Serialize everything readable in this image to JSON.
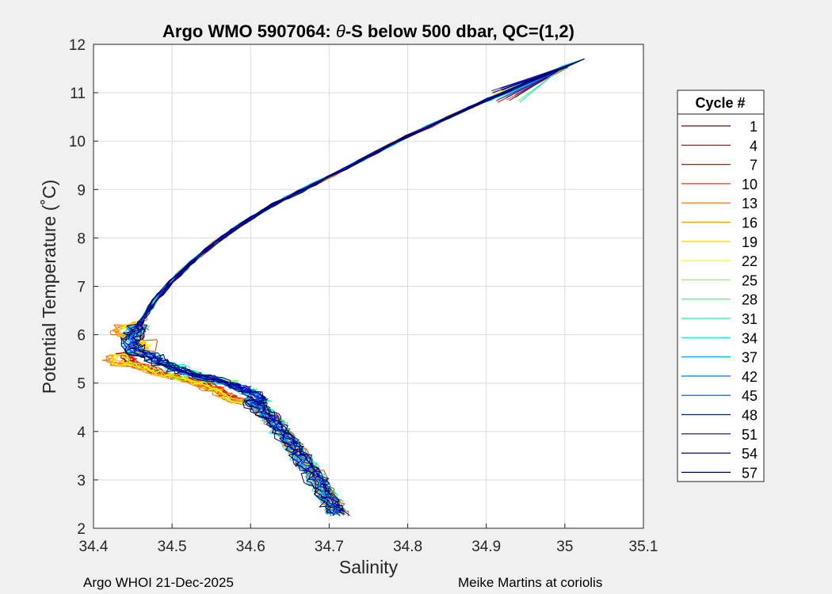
{
  "chart_data": {
    "type": "line",
    "title_prefix": "Argo WMO 5907064: ",
    "title_theta": "θ",
    "title_suffix": "-S below 500 dbar,  QC=(1,2)",
    "xlabel": "Salinity",
    "ylabel": "Potential Temperature (˚C)",
    "xlim": [
      34.4,
      35.1
    ],
    "ylim": [
      2,
      12
    ],
    "xticks": [
      "34.4",
      "34.5",
      "34.6",
      "34.7",
      "34.8",
      "34.9",
      "35",
      "35.1"
    ],
    "yticks": [
      "2",
      "3",
      "4",
      "5",
      "6",
      "7",
      "8",
      "9",
      "10",
      "11",
      "12"
    ],
    "grid": true,
    "legend_title": "Cycle #",
    "legend_position": "outside-right",
    "legend_entries": [
      "1",
      "4",
      "7",
      "10",
      "13",
      "16",
      "19",
      "22",
      "25",
      "28",
      "31",
      "34",
      "37",
      "42",
      "45",
      "48",
      "51",
      "54",
      "57"
    ],
    "legend_colors": [
      "#800000",
      "#b00000",
      "#e00000",
      "#ff3300",
      "#ff6600",
      "#ff9900",
      "#ffcc00",
      "#ffff00",
      "#99ff33",
      "#33ff66",
      "#00ffaa",
      "#00e6e6",
      "#00aaff",
      "#0077ff",
      "#0044ee",
      "#0011cc",
      "#0000aa",
      "#000088",
      "#000066"
    ],
    "series_mean": [
      {
        "s": 34.712,
        "t": 2.3
      },
      {
        "s": 34.7,
        "t": 2.6
      },
      {
        "s": 34.685,
        "t": 3.0
      },
      {
        "s": 34.668,
        "t": 3.4
      },
      {
        "s": 34.65,
        "t": 3.8
      },
      {
        "s": 34.63,
        "t": 4.2
      },
      {
        "s": 34.612,
        "t": 4.5
      },
      {
        "s": 34.59,
        "t": 4.8
      },
      {
        "s": 34.56,
        "t": 5.0
      },
      {
        "s": 34.51,
        "t": 5.2
      },
      {
        "s": 34.47,
        "t": 5.45
      },
      {
        "s": 34.45,
        "t": 5.7
      },
      {
        "s": 34.452,
        "t": 6.0
      },
      {
        "s": 34.462,
        "t": 6.3
      },
      {
        "s": 34.478,
        "t": 6.7
      },
      {
        "s": 34.5,
        "t": 7.1
      },
      {
        "s": 34.525,
        "t": 7.5
      },
      {
        "s": 34.555,
        "t": 7.9
      },
      {
        "s": 34.59,
        "t": 8.3
      },
      {
        "s": 34.63,
        "t": 8.7
      },
      {
        "s": 34.68,
        "t": 9.1
      },
      {
        "s": 34.74,
        "t": 9.6
      },
      {
        "s": 34.8,
        "t": 10.1
      },
      {
        "s": 34.88,
        "t": 10.7
      },
      {
        "s": 34.95,
        "t": 11.2
      },
      {
        "s": 35.025,
        "t": 11.7
      }
    ]
  },
  "footer": {
    "left": "Argo WHOI 21-Dec-2025",
    "right": "Meike Martins at coriolis"
  }
}
